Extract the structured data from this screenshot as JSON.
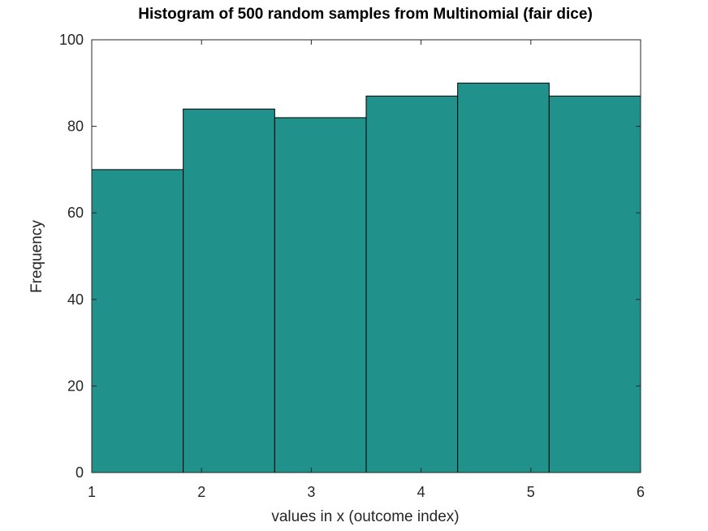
{
  "chart_data": {
    "type": "bar",
    "title": "Histogram of 500 random samples from Multinomial (fair dice)",
    "xlabel": "values in x (outcome index)",
    "ylabel": "Frequency",
    "xlim": [
      1,
      6
    ],
    "ylim": [
      0,
      100
    ],
    "xticks": [
      "1",
      "2",
      "3",
      "4",
      "5",
      "6"
    ],
    "yticks": [
      "0",
      "20",
      "40",
      "60",
      "80",
      "100"
    ],
    "bin_edges": [
      1,
      1.8333,
      2.6667,
      3.5,
      4.3333,
      5.1667,
      6
    ],
    "values": [
      70,
      84,
      82,
      87,
      90,
      87
    ],
    "bar_color": "#21918c",
    "edge_color": "#000000",
    "grid": false
  }
}
